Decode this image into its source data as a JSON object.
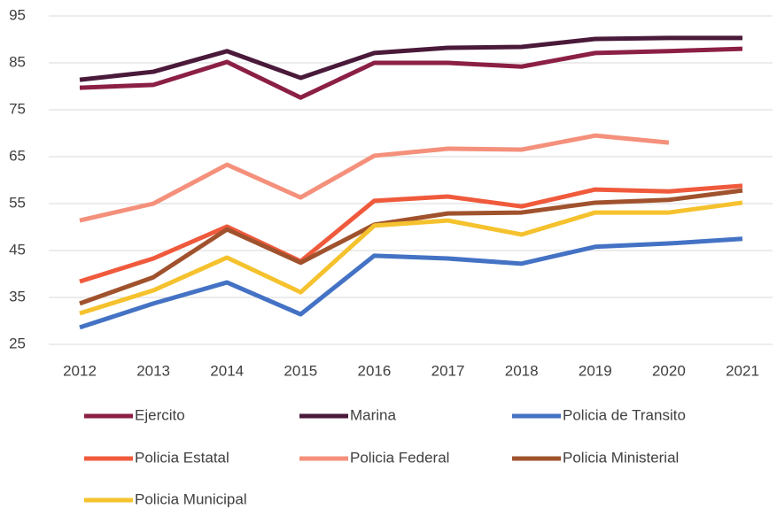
{
  "chart_data": {
    "type": "line",
    "categories": [
      "2012",
      "2013",
      "2014",
      "2015",
      "2016",
      "2017",
      "2018",
      "2019",
      "2020",
      "2021"
    ],
    "series": [
      {
        "name": "Ejercito",
        "color": "#8b1f45",
        "values": [
          79.7,
          80.3,
          85.2,
          77.6,
          85,
          85,
          84.2,
          87.1,
          87.5,
          88
        ]
      },
      {
        "name": "Marina",
        "color": "#4a1a3a",
        "values": [
          81.4,
          83.1,
          87.5,
          81.8,
          87.1,
          88.2,
          88.4,
          90.1,
          90.3,
          90.3
        ]
      },
      {
        "name": "Policia de Transito",
        "color": "#4472c4",
        "values": [
          28.6,
          33.7,
          38.2,
          31.4,
          43.9,
          43.3,
          42.2,
          45.8,
          46.5,
          47.5
        ]
      },
      {
        "name": "Policia Estatal",
        "color": "#f05a3c",
        "values": [
          38.4,
          43.3,
          50.1,
          42.7,
          55.6,
          56.5,
          54.4,
          58,
          57.6,
          58.8
        ]
      },
      {
        "name": "Policia Federal",
        "color": "#f4907b",
        "values": [
          51.4,
          55,
          63.3,
          56.3,
          65.2,
          66.7,
          66.5,
          69.5,
          68,
          null
        ]
      },
      {
        "name": "Policia Ministerial",
        "color": "#a0522d",
        "values": [
          33.7,
          39.3,
          49.5,
          42.4,
          50.5,
          52.9,
          53.1,
          55.2,
          55.8,
          57.8
        ]
      },
      {
        "name": "Policia Municipal",
        "color": "#f5c22e",
        "values": [
          31.6,
          36.5,
          43.5,
          36.1,
          50.3,
          51.4,
          48.4,
          53.1,
          53.1,
          55.2
        ]
      }
    ],
    "ylim": [
      25,
      95
    ],
    "yticks": [
      25,
      35,
      45,
      55,
      65,
      75,
      85,
      95
    ],
    "grid": true,
    "legend": "bottom"
  }
}
